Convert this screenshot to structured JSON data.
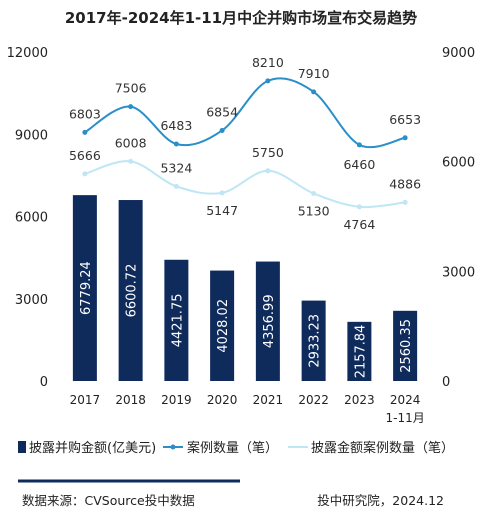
{
  "chart_data": {
    "type": "bar",
    "title": "2017年-2024年1-11月中企并购市场宣布交易趋势",
    "categories": [
      "2017",
      "2018",
      "2019",
      "2020",
      "2021",
      "2022",
      "2023",
      "2024\n1-11月"
    ],
    "left_axis": {
      "min": 0,
      "max": 12000,
      "ticks": [
        "0",
        "3000",
        "6000",
        "9000",
        "12000"
      ]
    },
    "right_axis": {
      "min": 0,
      "max": 9000,
      "ticks": [
        "0",
        "3000",
        "6000",
        "9000"
      ]
    },
    "series": [
      {
        "name": "披露并购金额(亿美元)",
        "type": "bar",
        "axis": "left",
        "color": "#0f2b5c",
        "values": [
          6779.24,
          6600.72,
          4421.75,
          4028.02,
          4356.99,
          2933.23,
          2157.84,
          2560.35
        ],
        "labels": [
          "6779.24",
          "6600.72",
          "4421.75",
          "4028.02",
          "4356.99",
          "2933.23",
          "2157.84",
          "2560.35"
        ]
      },
      {
        "name": "案例数量（笔）",
        "type": "line",
        "axis": "right",
        "color": "#2a8fc9",
        "values": [
          6803,
          7506,
          6483,
          6854,
          8210,
          7910,
          6460,
          6653
        ],
        "labels": [
          "6803",
          "7506",
          "6483",
          "6854",
          "8210",
          "7910",
          "6460",
          "6653"
        ]
      },
      {
        "name": "披露金额案例数量（笔）",
        "type": "line",
        "axis": "right",
        "color": "#bfe6f5",
        "values": [
          5666,
          6008,
          5324,
          5147,
          5750,
          5130,
          4764,
          4886
        ],
        "labels": [
          "5666",
          "6008",
          "5324",
          "5147",
          "5750",
          "5130",
          "4764",
          "4886"
        ]
      }
    ],
    "legend_position": "bottom",
    "grid": false
  },
  "footer": {
    "source": "数据来源：CVSource投中数据",
    "credit": "投中研究院，2024.12",
    "divider_color": "#0f2b5c"
  }
}
